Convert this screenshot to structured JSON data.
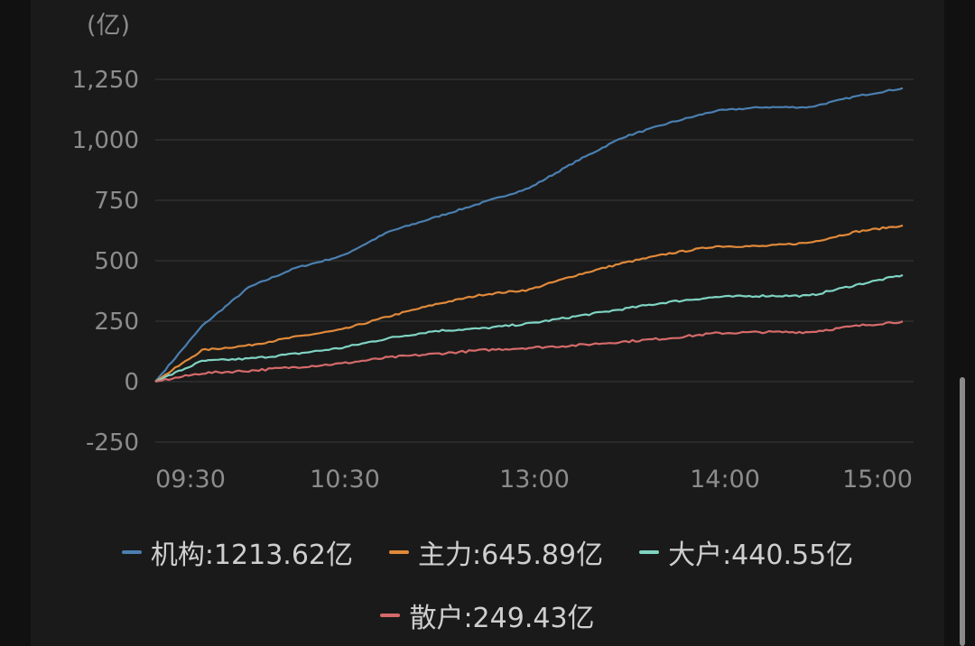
{
  "chart_data": {
    "type": "line",
    "unit_label": "(亿)",
    "ylim": [
      -250,
      1250
    ],
    "yticks": [
      -250,
      0,
      250,
      500,
      750,
      1000,
      1250
    ],
    "ytick_labels": [
      "-250",
      "0",
      "250",
      "500",
      "750",
      "1,000",
      "1,250"
    ],
    "xticks": [
      "09:30",
      "10:30",
      "13:00",
      "14:00",
      "15:00"
    ],
    "grid": true,
    "legend_position": "bottom",
    "x": [
      "09:30",
      "09:45",
      "10:00",
      "10:15",
      "10:30",
      "10:45",
      "11:00",
      "11:15",
      "11:30/13:00",
      "13:15",
      "13:30",
      "13:45",
      "14:00",
      "14:15",
      "14:30",
      "14:45",
      "15:00"
    ],
    "series": [
      {
        "name": "机构",
        "legend_label": "机构:1213.62亿",
        "color": "#4a7fb0",
        "values": [
          0,
          230,
          390,
          470,
          520,
          620,
          680,
          740,
          800,
          910,
          1010,
          1070,
          1120,
          1135,
          1135,
          1180,
          1213.62
        ]
      },
      {
        "name": "主力",
        "legend_label": "主力:645.89亿",
        "color": "#e0893a",
        "values": [
          0,
          130,
          150,
          185,
          215,
          270,
          320,
          360,
          380,
          440,
          490,
          530,
          560,
          560,
          575,
          620,
          645.89
        ]
      },
      {
        "name": "大户",
        "legend_label": "大户:440.55亿",
        "color": "#7fd3c3",
        "values": [
          0,
          85,
          95,
          115,
          140,
          180,
          210,
          220,
          240,
          270,
          300,
          330,
          350,
          355,
          355,
          400,
          440.55
        ]
      },
      {
        "name": "散户",
        "legend_label": "散户:249.43亿",
        "color": "#d66a6a",
        "values": [
          0,
          35,
          45,
          60,
          75,
          100,
          115,
          130,
          140,
          150,
          165,
          180,
          200,
          205,
          205,
          230,
          249.43
        ]
      }
    ]
  }
}
